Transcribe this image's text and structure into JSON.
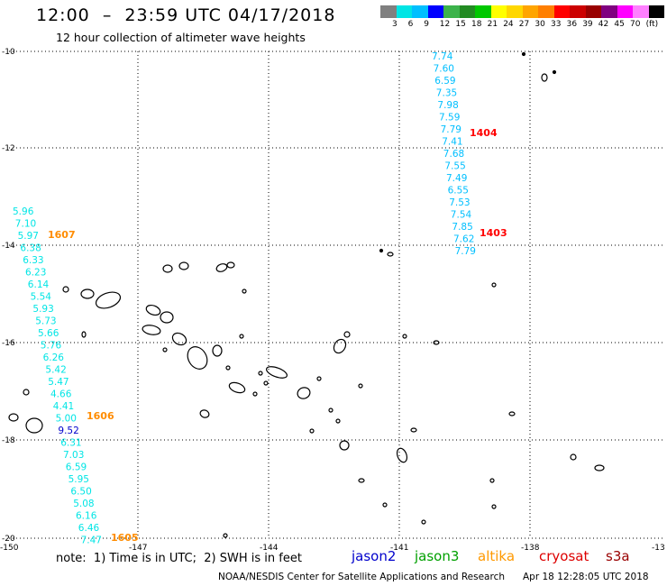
{
  "header": {
    "title": "12:00  –  23:59 UTC 04/17/2018",
    "subtitle": "12 hour collection of altimeter wave heights"
  },
  "scale": {
    "colors": [
      "#808080",
      "#00e5e5",
      "#00bfff",
      "#0000ff",
      "#3cb34b",
      "#228b22",
      "#00c800",
      "#ffff00",
      "#ffd700",
      "#ffa500",
      "#ff7f00",
      "#ff0000",
      "#cc0000",
      "#990000",
      "#800080",
      "#ff00ff",
      "#ff80ff",
      "#000000"
    ],
    "labels": [
      "3",
      "6",
      "9",
      "12",
      "15",
      "18",
      "21",
      "24",
      "27",
      "30",
      "33",
      "36",
      "39",
      "42",
      "45",
      "70",
      "(ft)"
    ]
  },
  "map": {
    "lat_labels": [
      "-10",
      "-12",
      "-14",
      "-16",
      "-18",
      "-20"
    ],
    "lon_labels": [
      "-150",
      "-147",
      "-144",
      "-141",
      "-138",
      "-13"
    ],
    "tracks": [
      {
        "color": "#00bfff",
        "time_label": "1404",
        "time_color": "#ff0000",
        "values": [
          "7.74",
          "7.60",
          "6.59",
          "7.35",
          "7.98",
          "7.59",
          "7.79",
          "7.41",
          "7.68",
          "7.55",
          "7.49",
          "6.55",
          "7.53",
          "7.54",
          "7.85",
          "7.62",
          "7.79"
        ],
        "end_label": "1403"
      },
      {
        "color": "#00e5e5",
        "time_label": "1607",
        "time_color": "#ff8c00",
        "values": [
          "5.96",
          "7.10",
          "5.97",
          "6.38",
          "6.33",
          "6.23",
          "6.14",
          "5.54",
          "5.93",
          "5.73",
          "5.66",
          "5.76",
          "6.26",
          "5.42",
          "5.47",
          "4.66",
          "4.41",
          "5.00",
          "9.52",
          "6.31",
          "7.03",
          "6.59",
          "5.95",
          "6.50",
          "5.08",
          "6.16",
          "6.46",
          "7.47"
        ],
        "mid_label": "1606",
        "end_label": "1605"
      }
    ]
  },
  "footer": {
    "note": "note:  1) Time is in UTC;  2) SWH is in feet",
    "legend": [
      {
        "label": "jason2",
        "color": "#0000cc"
      },
      {
        "label": "jason3",
        "color": "#00a000"
      },
      {
        "label": "altika",
        "color": "#ff9900"
      },
      {
        "label": "cryosat",
        "color": "#dd0000"
      },
      {
        "label": "s3a",
        "color": "#990000"
      }
    ],
    "credit": "NOAA/NESDIS Center for Satellite Applications and Research",
    "timestamp": "Apr 18 12:28:05 UTC 2018"
  }
}
